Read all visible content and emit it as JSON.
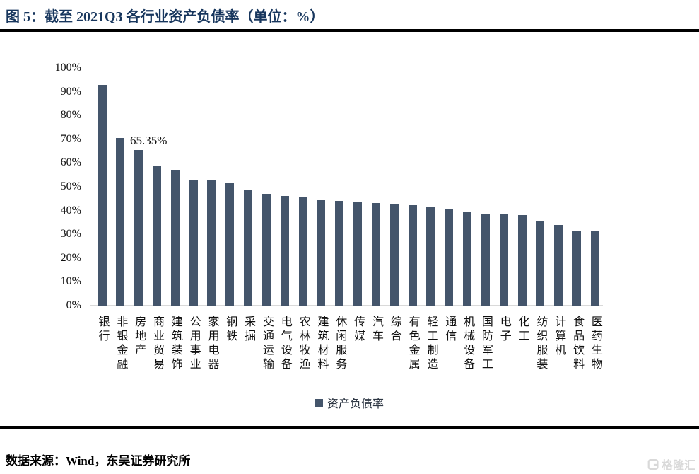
{
  "header": {
    "title": "图 5：截至 2021Q3 各行业资产负债率（单位：%）"
  },
  "chart_data": {
    "type": "bar",
    "title": "截至 2021Q3 各行业资产负债率",
    "unit": "%",
    "categories": [
      "银行",
      "非银金融",
      "房地产",
      "商业贸易",
      "建筑装饰",
      "公用事业",
      "家用电器",
      "钢铁",
      "采掘",
      "交通运输",
      "电气设备",
      "农林牧渔",
      "建筑材料",
      "休闲服务",
      "传媒",
      "汽车",
      "综合",
      "有色金属",
      "轻工制造",
      "通信",
      "机械设备",
      "国防军工",
      "电子",
      "化工",
      "纺织服装",
      "计算机",
      "食品饮料",
      "医药生物"
    ],
    "values": [
      92.8,
      70.6,
      65.35,
      58.6,
      57.0,
      53.1,
      53.0,
      51.6,
      48.9,
      47.0,
      46.1,
      45.4,
      44.6,
      43.9,
      43.6,
      43.1,
      42.6,
      42.2,
      41.4,
      40.6,
      39.7,
      38.5,
      38.4,
      38.2,
      35.8,
      33.9,
      31.6,
      31.5
    ],
    "ylim": [
      0,
      100
    ],
    "y_ticks": [
      "0%",
      "10%",
      "20%",
      "30%",
      "40%",
      "50%",
      "60%",
      "70%",
      "80%",
      "90%",
      "100%"
    ],
    "grid": false,
    "legend_position": "bottom",
    "bar_color": "#44556B",
    "axis_line_color": "#D9D9D9",
    "annotation": {
      "text": "65.35%",
      "category": "房地产",
      "category_index": 2
    },
    "legend": [
      {
        "label": "资产负债率",
        "color": "#44556B"
      }
    ]
  },
  "footer": {
    "source": "数据来源：Wind，东吴证券研究所"
  },
  "watermark": {
    "text": "格隆汇"
  }
}
